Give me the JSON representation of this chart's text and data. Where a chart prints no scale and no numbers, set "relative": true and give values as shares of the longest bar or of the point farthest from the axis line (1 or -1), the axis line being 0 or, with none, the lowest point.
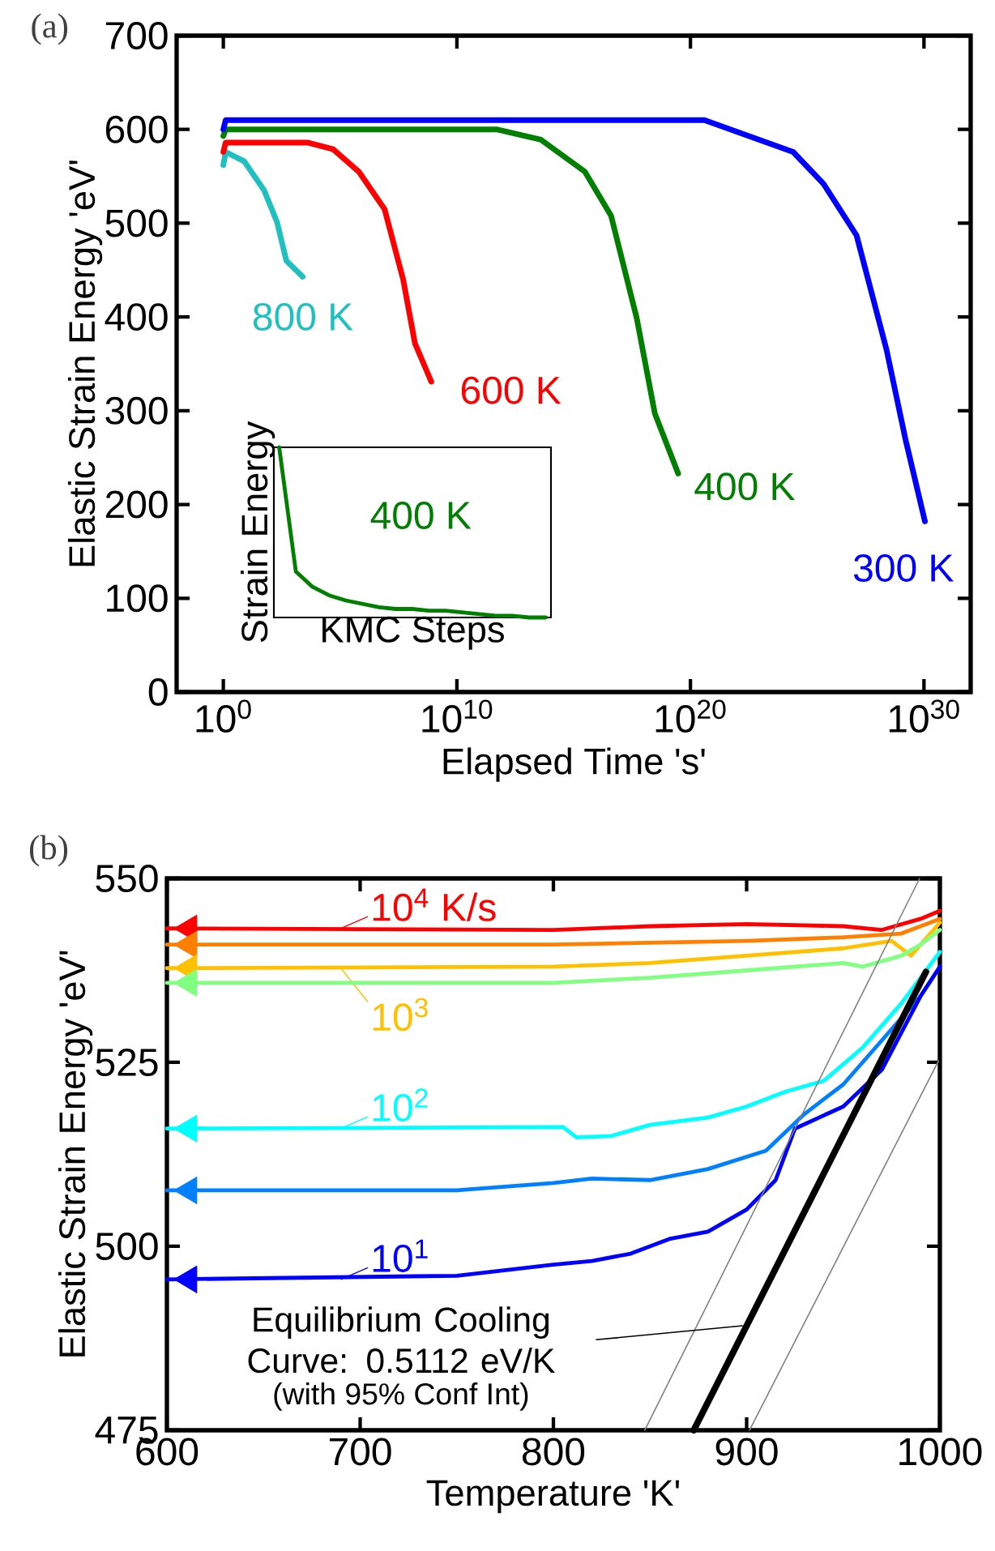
{
  "chart_data": [
    {
      "type": "line",
      "title": "(a)",
      "xlabel": "Elapsed Time 's'",
      "ylabel": "Elastic Strain Energy 'eV'",
      "log": "x",
      "xlim": [
        0.01,
        1e+32
      ],
      "xticks": [
        {
          "value": 1,
          "label": "10$^{0}$"
        },
        {
          "value": 10000000000.0,
          "label": "10$^{10}$"
        },
        {
          "value": 1e+20,
          "label": "10$^{20}$"
        },
        {
          "value": 1e+30,
          "label": "10$^{30}$"
        }
      ],
      "ylim": [
        0,
        700
      ],
      "yticks": [
        0,
        100,
        200,
        300,
        400,
        500,
        600,
        700
      ],
      "series": [
        {
          "name": "800 K",
          "color": "#20c0c0",
          "x": [
            1,
            1.26,
            7.9,
            56,
            200,
            500,
            2500
          ],
          "values": [
            562,
            576,
            566,
            535,
            501,
            460,
            443
          ]
        },
        {
          "name": "600 K",
          "color": "#ff0000",
          "x": [
            1,
            1.26,
            4000.0,
            50000.0,
            630000.0,
            8000000.0,
            50000000.0,
            160000000.0,
            800000000.0
          ],
          "values": [
            576,
            586,
            586,
            579,
            555,
            515,
            440,
            372,
            331
          ]
        },
        {
          "name": "400 K",
          "color": "#007f00",
          "x": [
            1,
            1.26,
            500000000000.0,
            40000000000000.0,
            3000000000000000.0,
            4e+16,
            5e+17,
            3e+18,
            3e+19
          ],
          "values": [
            593,
            600,
            600,
            589,
            555,
            508,
            399,
            297,
            233
          ]
        },
        {
          "name": "300 K",
          "color": "#0000ff",
          "x": [
            1,
            1.26,
            4e+20,
            2.5e+24,
            5e+25,
            1.3e+27,
            2.5e+28,
            1.6e+29,
            1.1e+30
          ],
          "values": [
            600,
            610,
            610,
            576,
            542,
            487,
            365,
            270,
            182
          ]
        }
      ]
    },
    {
      "type": "line",
      "relative": true,
      "xlabel": "KMC Steps",
      "ylabel": "Strain Energy",
      "categories": [
        null,
        null,
        null,
        null,
        null,
        null,
        null,
        null,
        null,
        null,
        null,
        null,
        null,
        null,
        null,
        null,
        null
      ],
      "series": [
        {
          "name": "400 K",
          "color": "#007f00",
          "values": [
            1,
            0.27,
            0.18,
            0.13,
            0.1,
            0.08,
            0.06,
            0.05,
            0.05,
            0.04,
            0.04,
            0.03,
            0.02,
            0.01,
            0.01,
            0,
            0
          ]
        }
      ]
    },
    {
      "type": "line",
      "title": "(b)",
      "xlabel": "Temperature 'K'",
      "ylabel": "Elastic Strain Energy 'eV'",
      "xlim": [
        600,
        1000
      ],
      "xticks": [
        600,
        700,
        800,
        900,
        1000
      ],
      "ylim": [
        475,
        550
      ],
      "yticks": [
        475,
        500,
        525,
        550
      ],
      "legend": "left",
      "series": [
        {
          "name": "10$^{4}$ K/s",
          "color": "#ff0000",
          "x": [
            600,
            800,
            850,
            900,
            950,
            970,
            990,
            1000
          ],
          "values": [
            543.2,
            543,
            543.5,
            543.8,
            543.5,
            543,
            544.5,
            545.6
          ]
        },
        {
          "color": "#ff8000",
          "x": [
            600,
            800,
            900,
            950,
            980,
            1000
          ],
          "values": [
            541,
            541,
            541.5,
            542,
            542.5,
            544.5
          ]
        },
        {
          "name": "10$^{3}$",
          "color": "#ffc000",
          "x": [
            600,
            800,
            850,
            900,
            950,
            975,
            985,
            1000
          ],
          "values": [
            537.8,
            538,
            538.5,
            539.5,
            540.5,
            541.5,
            539.5,
            544
          ]
        },
        {
          "color": "#80ff80",
          "x": [
            600,
            800,
            850,
            900,
            950,
            960,
            980,
            990,
            1000
          ],
          "values": [
            535.8,
            535.8,
            536.5,
            537.5,
            538.5,
            538,
            539.5,
            541,
            543
          ]
        },
        {
          "name": "10$^{2}$",
          "color": "#00ffff",
          "x": [
            600,
            805,
            812,
            830,
            850,
            880,
            900,
            920,
            940,
            960,
            980,
            1000
          ],
          "values": [
            516,
            516.2,
            514.8,
            515,
            516.5,
            517.5,
            519,
            521,
            522.5,
            527,
            533,
            540
          ]
        },
        {
          "color": "#0080ff",
          "x": [
            600,
            750,
            800,
            820,
            850,
            880,
            910,
            930,
            950,
            970,
            990,
            1000
          ],
          "values": [
            507.6,
            507.6,
            508.6,
            509.2,
            509,
            510.5,
            513,
            518,
            522,
            528,
            534,
            538
          ]
        },
        {
          "name": "10$^{1}$",
          "color": "#0000ff",
          "x": [
            600,
            750,
            800,
            820,
            840,
            860,
            880,
            900,
            915,
            925,
            950,
            970,
            990,
            1000
          ],
          "values": [
            495.5,
            496,
            497.5,
            498,
            499,
            501,
            502,
            505,
            509,
            516,
            519,
            524,
            534,
            538
          ]
        },
        {
          "color": "#000000",
          "x": [
            872.6,
            992.8
          ],
          "values": [
            475,
            537.3
          ]
        },
        {
          "color": "#808080",
          "x": [
            847.3,
            989.5
          ],
          "values": [
            475,
            550
          ]
        },
        {
          "color": "#808080",
          "x": [
            901.5,
            999.3
          ],
          "values": [
            475,
            525.2
          ]
        }
      ],
      "annotations": [
        {
          "text": "Equilibrium Cooling Curve: 0.5112 eV/K",
          "x": 898,
          "y": 489.2
        },
        "(with 95% Conf Int)"
      ]
    }
  ]
}
